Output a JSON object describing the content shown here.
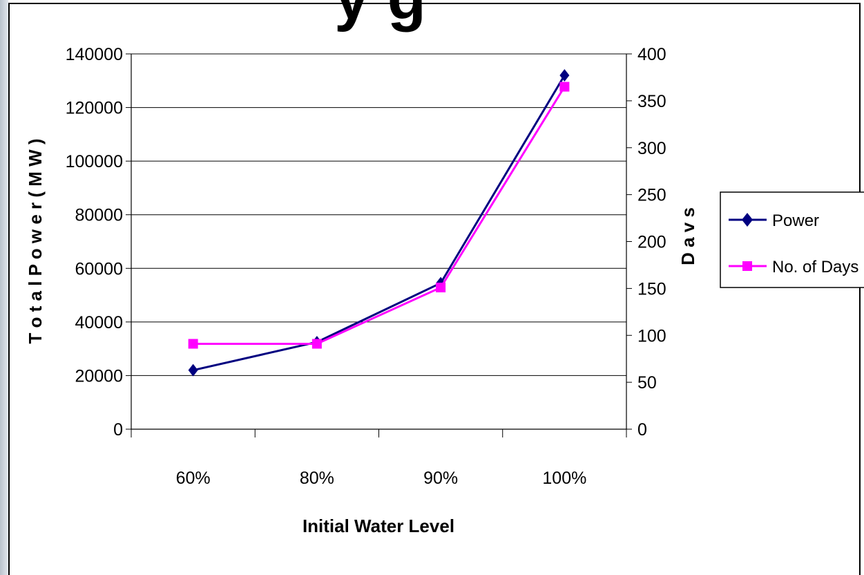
{
  "title_fragment": "y  g",
  "chart_data": {
    "type": "line",
    "categories": [
      "60%",
      "80%",
      "90%",
      "100%"
    ],
    "xlabel": "Initial Water Level",
    "ylabel_left": "T o t a l P o w e r  ( M W )",
    "ylabel_right": "D a v s",
    "ylim_left": [
      0,
      140000
    ],
    "yticks_left": [
      "0",
      "20000",
      "40000",
      "60000",
      "80000",
      "100000",
      "120000",
      "140000"
    ],
    "ylim_right": [
      0,
      400
    ],
    "yticks_right": [
      "0",
      "50",
      "100",
      "150",
      "200",
      "250",
      "300",
      "350",
      "400"
    ],
    "grid": true,
    "legend_position": "right",
    "series": [
      {
        "name": "Power",
        "axis": "left",
        "values": [
          22000,
          32500,
          54500,
          132000
        ],
        "color": "#000080",
        "marker": "diamond"
      },
      {
        "name": "No. of Days",
        "axis": "right",
        "values": [
          91,
          91,
          151,
          365
        ],
        "color": "#ff00ff",
        "marker": "square"
      }
    ]
  }
}
